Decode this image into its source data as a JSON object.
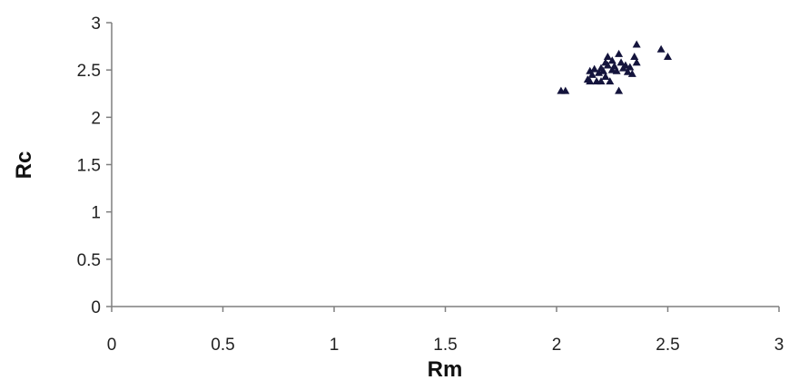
{
  "chart_data": {
    "type": "scatter",
    "title": "",
    "xlabel": "Rm",
    "ylabel": "Rc",
    "xlim": [
      0,
      3
    ],
    "ylim": [
      0,
      3
    ],
    "x_ticks": [
      "0",
      "0.5",
      "1",
      "1.5",
      "2",
      "2.5",
      "3"
    ],
    "y_ticks": [
      "0",
      "0.5",
      "1",
      "1.5",
      "2",
      "2.5",
      "3"
    ],
    "grid": false,
    "legend": "none",
    "marker": "triangle",
    "marker_color": "#14143c",
    "series": [
      {
        "points": [
          [
            2.02,
            2.28
          ],
          [
            2.04,
            2.28
          ],
          [
            2.14,
            2.4
          ],
          [
            2.15,
            2.49
          ],
          [
            2.15,
            2.38
          ],
          [
            2.16,
            2.45
          ],
          [
            2.17,
            2.51
          ],
          [
            2.18,
            2.38
          ],
          [
            2.19,
            2.47
          ],
          [
            2.2,
            2.38
          ],
          [
            2.2,
            2.52
          ],
          [
            2.21,
            2.49
          ],
          [
            2.22,
            2.58
          ],
          [
            2.22,
            2.43
          ],
          [
            2.23,
            2.64
          ],
          [
            2.23,
            2.55
          ],
          [
            2.24,
            2.38
          ],
          [
            2.25,
            2.5
          ],
          [
            2.25,
            2.6
          ],
          [
            2.26,
            2.54
          ],
          [
            2.27,
            2.49
          ],
          [
            2.28,
            2.67
          ],
          [
            2.28,
            2.28
          ],
          [
            2.29,
            2.58
          ],
          [
            2.3,
            2.52
          ],
          [
            2.31,
            2.55
          ],
          [
            2.32,
            2.48
          ],
          [
            2.33,
            2.53
          ],
          [
            2.34,
            2.46
          ],
          [
            2.35,
            2.64
          ],
          [
            2.36,
            2.58
          ],
          [
            2.36,
            2.77
          ],
          [
            2.47,
            2.72
          ],
          [
            2.5,
            2.64
          ]
        ]
      }
    ]
  }
}
